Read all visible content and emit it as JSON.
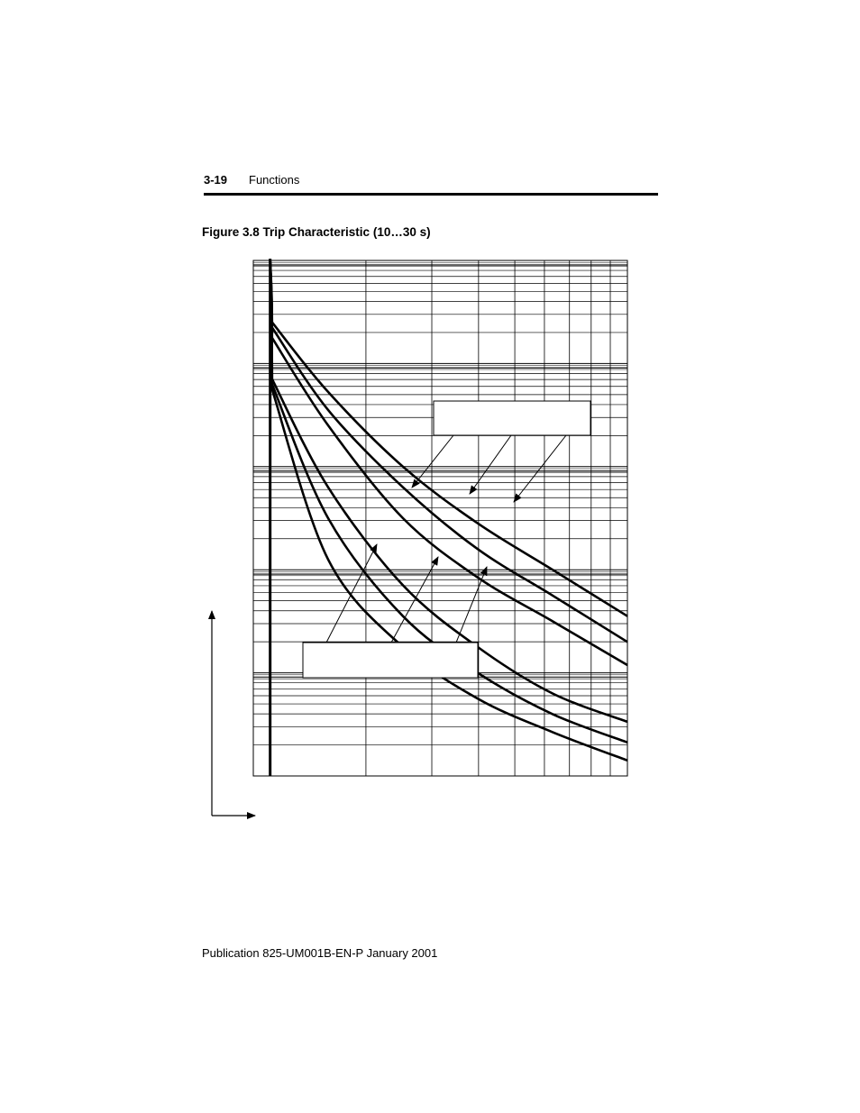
{
  "header": {
    "page_number": "3-19",
    "section": "Functions"
  },
  "figure": {
    "caption": "Figure 3.8 Trip Characteristic (10…30 s)"
  },
  "footer": {
    "publication": "Publication 825-UM001B-EN-P  January 2001"
  },
  "chart_data": {
    "type": "line",
    "title": "",
    "xlabel": "",
    "ylabel": "",
    "x_scale": "log",
    "y_scale": "log",
    "x_decades": 1,
    "y_decades": 5,
    "grid": true,
    "legend": "none",
    "series": [
      {
        "values": [
          [
            0.05,
            0.75
          ],
          [
            0.2,
            0.42
          ],
          [
            0.4,
            0.25
          ],
          [
            0.6,
            0.15
          ],
          [
            0.8,
            0.085
          ],
          [
            1.0,
            0.03
          ]
        ]
      },
      {
        "values": [
          [
            0.05,
            0.76
          ],
          [
            0.2,
            0.5
          ],
          [
            0.4,
            0.31
          ],
          [
            0.6,
            0.2
          ],
          [
            0.8,
            0.12
          ],
          [
            1.0,
            0.065
          ]
        ]
      },
      {
        "values": [
          [
            0.05,
            0.77
          ],
          [
            0.2,
            0.56
          ],
          [
            0.4,
            0.37
          ],
          [
            0.6,
            0.25
          ],
          [
            0.8,
            0.16
          ],
          [
            1.0,
            0.105
          ]
        ]
      },
      {
        "values": [
          [
            0.05,
            0.85
          ],
          [
            0.2,
            0.68
          ],
          [
            0.4,
            0.5
          ],
          [
            0.6,
            0.385
          ],
          [
            0.8,
            0.3
          ],
          [
            1.0,
            0.215
          ]
        ]
      },
      {
        "values": [
          [
            0.05,
            0.87
          ],
          [
            0.2,
            0.71
          ],
          [
            0.4,
            0.56
          ],
          [
            0.6,
            0.44
          ],
          [
            0.8,
            0.35
          ],
          [
            1.0,
            0.26
          ]
        ]
      },
      {
        "values": [
          [
            0.05,
            0.88
          ],
          [
            0.2,
            0.745
          ],
          [
            0.4,
            0.6
          ],
          [
            0.6,
            0.49
          ],
          [
            0.8,
            0.4
          ],
          [
            1.0,
            0.31
          ]
        ]
      }
    ],
    "callouts": [
      {
        "targets": [
          3,
          4,
          5
        ]
      },
      {
        "targets": [
          0,
          1,
          2
        ]
      }
    ]
  }
}
